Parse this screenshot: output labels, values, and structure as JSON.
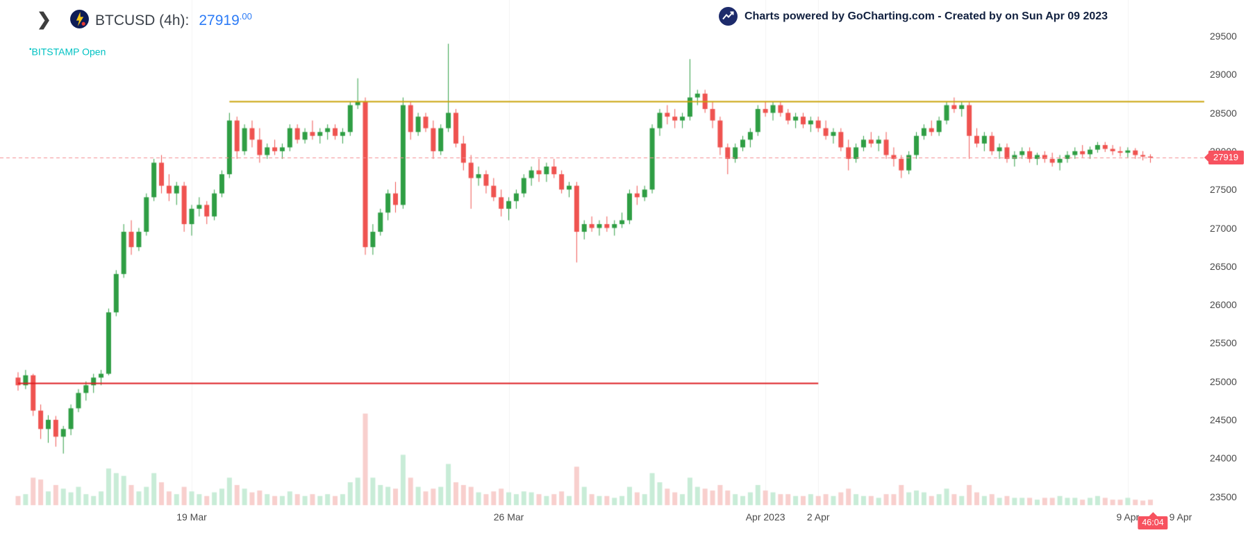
{
  "header": {
    "chevron": "❯",
    "symbol_title": "BTCUSD (4h):",
    "price_int": "27919",
    "price_dec": ".00",
    "status_bullet": "•",
    "exchange_status": "BITSTAMP Open",
    "price_color": "#2c7bf6",
    "status_color": "#00c2c3"
  },
  "attribution": {
    "text": "Charts powered by GoCharting.com - Created by  on Sun Apr 09 2023"
  },
  "tags": {
    "last_price": "27919",
    "countdown": "46:04",
    "tag_color": "#f7525f"
  },
  "chart_data": {
    "type": "candlestick",
    "symbol": "BTCUSD",
    "timeframe": "4h",
    "exchange": "BITSTAMP",
    "title": "BTCUSD (4h)",
    "last_price": 27919.0,
    "grid": "faint-vertical",
    "y_axis": {
      "position": "right",
      "ticks": [
        29500,
        29000,
        28500,
        28000,
        27500,
        27000,
        26500,
        26000,
        25500,
        25000,
        24500,
        24000,
        23500
      ]
    },
    "x_axis": {
      "ticks": [
        {
          "label": "19 Mar",
          "index": 23,
          "grid": true
        },
        {
          "label": "26 Mar",
          "index": 65,
          "grid": true
        },
        {
          "label": "Apr 2023",
          "index": 99,
          "grid": true
        },
        {
          "label": "2 Apr",
          "index": 106,
          "grid": true
        },
        {
          "label": "9 Apr",
          "index": 147,
          "grid": true
        },
        {
          "label": "9 Apr",
          "index": 154,
          "grid": false
        }
      ]
    },
    "annotations": [
      {
        "type": "hline",
        "name": "resistance-line",
        "price": 28650,
        "from_index": 28,
        "to_index": null,
        "color": "#c9a40b",
        "width": 2
      },
      {
        "type": "hline",
        "name": "support-line",
        "price": 24980,
        "from_index": 0,
        "to_index": 106,
        "color": "#dd1d21",
        "width": 2
      },
      {
        "type": "hline",
        "name": "last-price-line",
        "price": 27919,
        "from_index": null,
        "to_index": null,
        "color": "#f58c90",
        "width": 1,
        "dash": [
          5,
          4
        ]
      }
    ],
    "colors": {
      "up": "#2f9e44",
      "down": "#ef5350",
      "vol_up": "#c8ecd7",
      "vol_down": "#f8cfcd",
      "grid": "rgba(0,0,0,0.05)"
    },
    "columns": [
      "open",
      "high",
      "low",
      "close",
      "volume_rel"
    ],
    "candles": [
      [
        25050,
        25120,
        24880,
        24950,
        0.1
      ],
      [
        24950,
        25150,
        24900,
        25080,
        0.12
      ],
      [
        25080,
        25100,
        24550,
        24620,
        0.3
      ],
      [
        24620,
        24700,
        24250,
        24380,
        0.28
      ],
      [
        24380,
        24560,
        24200,
        24500,
        0.15
      ],
      [
        24500,
        24550,
        24150,
        24280,
        0.22
      ],
      [
        24280,
        24420,
        24060,
        24380,
        0.18
      ],
      [
        24380,
        24700,
        24300,
        24650,
        0.14
      ],
      [
        24650,
        24900,
        24600,
        24850,
        0.2
      ],
      [
        24850,
        25000,
        24750,
        24950,
        0.12
      ],
      [
        24950,
        25100,
        24850,
        25050,
        0.1
      ],
      [
        25050,
        25150,
        24950,
        25100,
        0.15
      ],
      [
        25100,
        25950,
        25080,
        25900,
        0.4
      ],
      [
        25900,
        26450,
        25850,
        26400,
        0.35
      ],
      [
        26400,
        27050,
        26350,
        26950,
        0.32
      ],
      [
        26950,
        27100,
        26650,
        26750,
        0.22
      ],
      [
        26750,
        27000,
        26700,
        26950,
        0.15
      ],
      [
        26950,
        27450,
        26900,
        27400,
        0.2
      ],
      [
        27400,
        27900,
        27350,
        27850,
        0.35
      ],
      [
        27850,
        27950,
        27450,
        27550,
        0.25
      ],
      [
        27550,
        27700,
        27350,
        27450,
        0.15
      ],
      [
        27450,
        27600,
        27300,
        27550,
        0.12
      ],
      [
        27550,
        27600,
        26950,
        27050,
        0.2
      ],
      [
        27050,
        27300,
        26900,
        27250,
        0.15
      ],
      [
        27250,
        27400,
        27150,
        27300,
        0.12
      ],
      [
        27300,
        27350,
        27050,
        27150,
        0.1
      ],
      [
        27150,
        27500,
        27100,
        27450,
        0.14
      ],
      [
        27450,
        27750,
        27400,
        27700,
        0.18
      ],
      [
        27700,
        28500,
        27650,
        28400,
        0.3
      ],
      [
        28400,
        28450,
        27900,
        28000,
        0.22
      ],
      [
        28000,
        28350,
        27950,
        28300,
        0.18
      ],
      [
        28300,
        28400,
        28050,
        28150,
        0.14
      ],
      [
        28150,
        28300,
        27850,
        27950,
        0.16
      ],
      [
        27950,
        28100,
        27900,
        28050,
        0.12
      ],
      [
        28050,
        28150,
        27950,
        28000,
        0.1
      ],
      [
        28000,
        28100,
        27900,
        28050,
        0.1
      ],
      [
        28050,
        28350,
        28000,
        28300,
        0.15
      ],
      [
        28300,
        28350,
        28100,
        28150,
        0.12
      ],
      [
        28150,
        28300,
        28100,
        28250,
        0.1
      ],
      [
        28250,
        28400,
        28150,
        28200,
        0.12
      ],
      [
        28200,
        28300,
        28100,
        28250,
        0.1
      ],
      [
        28250,
        28350,
        28150,
        28300,
        0.12
      ],
      [
        28300,
        28350,
        28150,
        28200,
        0.1
      ],
      [
        28200,
        28300,
        28100,
        28250,
        0.12
      ],
      [
        28250,
        28650,
        28200,
        28600,
        0.25
      ],
      [
        28600,
        28950,
        28550,
        28650,
        0.3
      ],
      [
        28650,
        28700,
        26650,
        26750,
        1.0
      ],
      [
        26750,
        27050,
        26650,
        26950,
        0.3
      ],
      [
        26950,
        27250,
        26900,
        27200,
        0.22
      ],
      [
        27200,
        27500,
        27100,
        27450,
        0.2
      ],
      [
        27450,
        27600,
        27200,
        27300,
        0.18
      ],
      [
        27300,
        28700,
        27250,
        28600,
        0.55
      ],
      [
        28600,
        28650,
        28150,
        28250,
        0.3
      ],
      [
        28250,
        28500,
        28200,
        28450,
        0.2
      ],
      [
        28450,
        28500,
        28250,
        28300,
        0.15
      ],
      [
        28300,
        28400,
        27900,
        28000,
        0.18
      ],
      [
        28000,
        28350,
        27950,
        28300,
        0.2
      ],
      [
        28300,
        29400,
        28250,
        28500,
        0.45
      ],
      [
        28500,
        28550,
        28050,
        28100,
        0.25
      ],
      [
        28100,
        28200,
        27750,
        27850,
        0.22
      ],
      [
        27850,
        27950,
        27250,
        27650,
        0.2
      ],
      [
        27650,
        27800,
        27550,
        27700,
        0.14
      ],
      [
        27700,
        27750,
        27450,
        27550,
        0.12
      ],
      [
        27550,
        27650,
        27350,
        27400,
        0.15
      ],
      [
        27400,
        27500,
        27150,
        27250,
        0.18
      ],
      [
        27250,
        27400,
        27100,
        27350,
        0.14
      ],
      [
        27350,
        27500,
        27250,
        27450,
        0.12
      ],
      [
        27450,
        27700,
        27400,
        27650,
        0.15
      ],
      [
        27650,
        27800,
        27550,
        27750,
        0.14
      ],
      [
        27750,
        27900,
        27600,
        27700,
        0.12
      ],
      [
        27700,
        27850,
        27600,
        27800,
        0.1
      ],
      [
        27800,
        27900,
        27650,
        27700,
        0.12
      ],
      [
        27700,
        27750,
        27450,
        27500,
        0.15
      ],
      [
        27500,
        27600,
        27400,
        27550,
        0.1
      ],
      [
        27550,
        27600,
        26550,
        26950,
        0.42
      ],
      [
        26950,
        27100,
        26850,
        27050,
        0.2
      ],
      [
        27050,
        27150,
        26950,
        27000,
        0.12
      ],
      [
        27000,
        27100,
        26900,
        27050,
        0.1
      ],
      [
        27050,
        27150,
        26950,
        27000,
        0.1
      ],
      [
        27000,
        27100,
        26900,
        27050,
        0.08
      ],
      [
        27050,
        27200,
        27000,
        27100,
        0.1
      ],
      [
        27100,
        27500,
        27050,
        27450,
        0.2
      ],
      [
        27450,
        27550,
        27300,
        27400,
        0.14
      ],
      [
        27400,
        27550,
        27350,
        27500,
        0.12
      ],
      [
        27500,
        28350,
        27450,
        28300,
        0.35
      ],
      [
        28300,
        28550,
        28200,
        28500,
        0.25
      ],
      [
        28500,
        28600,
        28350,
        28450,
        0.18
      ],
      [
        28450,
        28550,
        28300,
        28400,
        0.14
      ],
      [
        28400,
        28500,
        28300,
        28450,
        0.12
      ],
      [
        28450,
        29200,
        28400,
        28700,
        0.3
      ],
      [
        28700,
        28800,
        28600,
        28750,
        0.2
      ],
      [
        28750,
        28800,
        28500,
        28550,
        0.18
      ],
      [
        28550,
        28650,
        28300,
        28400,
        0.16
      ],
      [
        28400,
        28450,
        27950,
        28050,
        0.22
      ],
      [
        28050,
        28100,
        27700,
        27900,
        0.16
      ],
      [
        27900,
        28100,
        27850,
        28050,
        0.12
      ],
      [
        28050,
        28200,
        28000,
        28150,
        0.1
      ],
      [
        28150,
        28300,
        28050,
        28250,
        0.14
      ],
      [
        28250,
        28600,
        28200,
        28550,
        0.22
      ],
      [
        28550,
        28650,
        28450,
        28500,
        0.16
      ],
      [
        28500,
        28650,
        28400,
        28600,
        0.14
      ],
      [
        28600,
        28650,
        28450,
        28500,
        0.12
      ],
      [
        28500,
        28550,
        28350,
        28400,
        0.12
      ],
      [
        28400,
        28500,
        28300,
        28450,
        0.1
      ],
      [
        28450,
        28500,
        28300,
        28350,
        0.1
      ],
      [
        28350,
        28450,
        28250,
        28400,
        0.12
      ],
      [
        28400,
        28450,
        28250,
        28300,
        0.1
      ],
      [
        28300,
        28400,
        28150,
        28200,
        0.12
      ],
      [
        28200,
        28300,
        28100,
        28250,
        0.1
      ],
      [
        28250,
        28300,
        28000,
        28050,
        0.14
      ],
      [
        28050,
        28150,
        27750,
        27900,
        0.18
      ],
      [
        27900,
        28100,
        27850,
        28050,
        0.12
      ],
      [
        28050,
        28200,
        28000,
        28150,
        0.1
      ],
      [
        28150,
        28250,
        28050,
        28100,
        0.1
      ],
      [
        28100,
        28200,
        28000,
        28150,
        0.08
      ],
      [
        28150,
        28250,
        27900,
        27950,
        0.12
      ],
      [
        27950,
        28050,
        27800,
        27900,
        0.12
      ],
      [
        27900,
        27950,
        27650,
        27750,
        0.22
      ],
      [
        27750,
        28000,
        27700,
        27950,
        0.14
      ],
      [
        27950,
        28250,
        27900,
        28200,
        0.16
      ],
      [
        28200,
        28350,
        28150,
        28300,
        0.14
      ],
      [
        28300,
        28400,
        28200,
        28250,
        0.1
      ],
      [
        28250,
        28450,
        28200,
        28400,
        0.12
      ],
      [
        28400,
        28650,
        28350,
        28600,
        0.18
      ],
      [
        28600,
        28700,
        28500,
        28550,
        0.12
      ],
      [
        28550,
        28650,
        28450,
        28600,
        0.1
      ],
      [
        28600,
        28650,
        27900,
        28200,
        0.22
      ],
      [
        28200,
        28300,
        28050,
        28100,
        0.14
      ],
      [
        28100,
        28250,
        28000,
        28200,
        0.1
      ],
      [
        28200,
        28250,
        27950,
        28000,
        0.12
      ],
      [
        28000,
        28100,
        27900,
        28050,
        0.08
      ],
      [
        28050,
        28100,
        27850,
        27900,
        0.1
      ],
      [
        27900,
        28000,
        27800,
        27950,
        0.08
      ],
      [
        27950,
        28050,
        27900,
        28000,
        0.08
      ],
      [
        28000,
        28050,
        27850,
        27900,
        0.08
      ],
      [
        27900,
        27980,
        27820,
        27950,
        0.06
      ],
      [
        27950,
        28000,
        27850,
        27900,
        0.08
      ],
      [
        27900,
        27980,
        27800,
        27850,
        0.08
      ],
      [
        27850,
        27950,
        27750,
        27900,
        0.1
      ],
      [
        27900,
        28000,
        27850,
        27950,
        0.08
      ],
      [
        27950,
        28050,
        27900,
        28000,
        0.08
      ],
      [
        28000,
        28080,
        27920,
        27960,
        0.06
      ],
      [
        27960,
        28060,
        27900,
        28020,
        0.08
      ],
      [
        28020,
        28120,
        27980,
        28080,
        0.1
      ],
      [
        28080,
        28120,
        27990,
        28030,
        0.08
      ],
      [
        28030,
        28080,
        27950,
        28000,
        0.06
      ],
      [
        28000,
        28060,
        27930,
        27980,
        0.06
      ],
      [
        27980,
        28050,
        27920,
        28010,
        0.08
      ],
      [
        28010,
        28040,
        27900,
        27950,
        0.06
      ],
      [
        27950,
        28000,
        27880,
        27930,
        0.05
      ],
      [
        27930,
        27960,
        27850,
        27919,
        0.06
      ]
    ]
  }
}
